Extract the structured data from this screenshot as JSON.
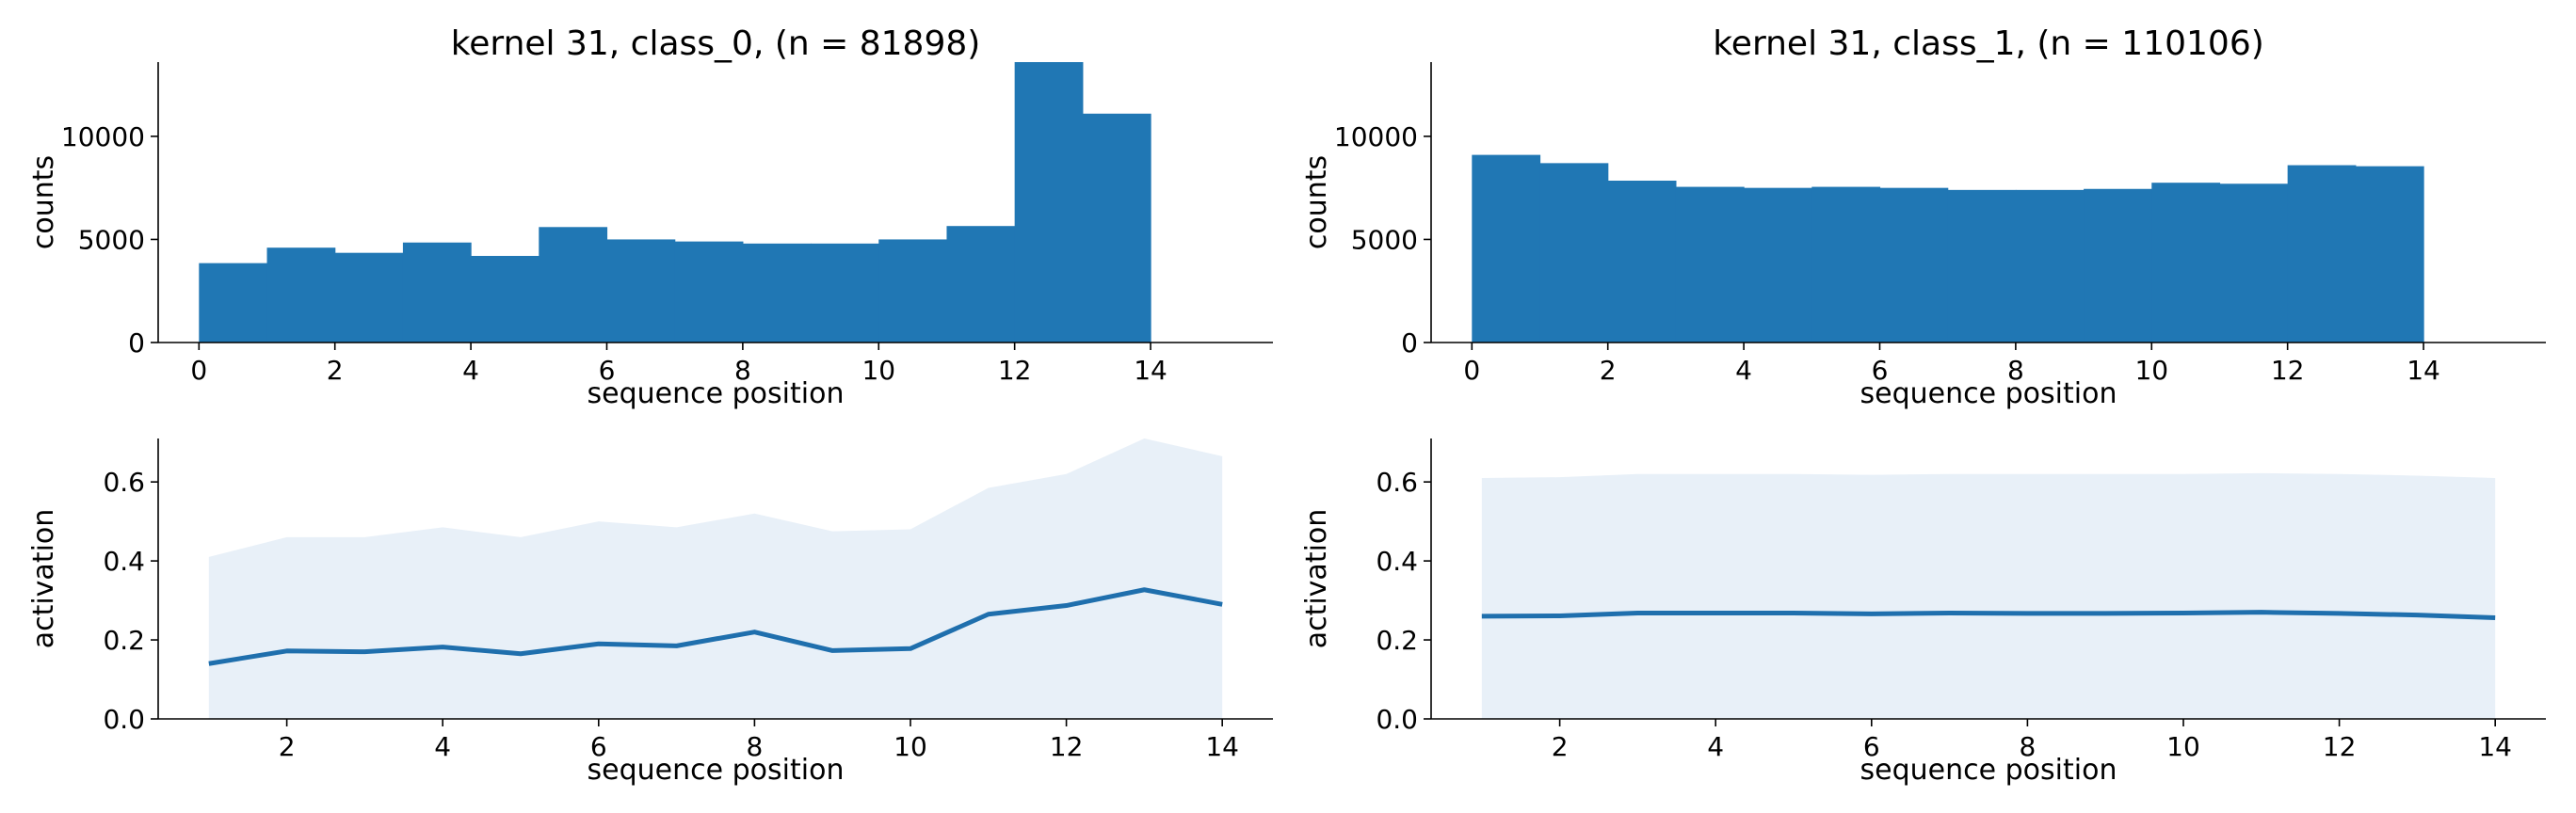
{
  "colors": {
    "bar": "#2077b4",
    "line": "#1f6fad",
    "band": "#e8f0f8",
    "axis": "#000000"
  },
  "chart_data": [
    {
      "type": "bar",
      "title": "kernel 31, class_0, (n = 81898)",
      "xlabel": "sequence position",
      "ylabel": "counts",
      "xlim": [
        -0.6,
        15.8
      ],
      "ylim": [
        0,
        13600
      ],
      "xticks": [
        0,
        2,
        4,
        6,
        8,
        10,
        12,
        14
      ],
      "xtick_labels": [
        "0",
        "2",
        "4",
        "6",
        "8",
        "10",
        "12",
        "14"
      ],
      "yticks": [
        0,
        5000,
        10000
      ],
      "ytick_labels": [
        "0",
        "5000",
        "10000"
      ],
      "bin_edges": [
        0,
        1,
        2,
        3,
        4,
        5,
        6,
        7,
        8,
        9,
        10,
        11,
        12,
        13,
        14
      ],
      "values": [
        3850,
        4600,
        4350,
        4850,
        4200,
        5600,
        5000,
        4900,
        4800,
        4800,
        5000,
        5650,
        13600,
        11100
      ]
    },
    {
      "type": "bar",
      "title": "kernel 31, class_1, (n = 110106)",
      "xlabel": "sequence position",
      "ylabel": "counts",
      "xlim": [
        -0.6,
        15.8
      ],
      "ylim": [
        0,
        13600
      ],
      "xticks": [
        0,
        2,
        4,
        6,
        8,
        10,
        12,
        14
      ],
      "xtick_labels": [
        "0",
        "2",
        "4",
        "6",
        "8",
        "10",
        "12",
        "14"
      ],
      "yticks": [
        0,
        5000,
        10000
      ],
      "ytick_labels": [
        "0",
        "5000",
        "10000"
      ],
      "bin_edges": [
        0,
        1,
        2,
        3,
        4,
        5,
        6,
        7,
        8,
        9,
        10,
        11,
        12,
        13,
        14
      ],
      "values": [
        9100,
        8700,
        7850,
        7550,
        7500,
        7550,
        7500,
        7400,
        7400,
        7450,
        7750,
        7700,
        8600,
        8550
      ]
    },
    {
      "type": "line",
      "title": "",
      "xlabel": "sequence position",
      "ylabel": "activation",
      "xlim": [
        0.35,
        14.65
      ],
      "ylim": [
        0,
        0.71
      ],
      "xticks": [
        2,
        4,
        6,
        8,
        10,
        12,
        14
      ],
      "xtick_labels": [
        "2",
        "4",
        "6",
        "8",
        "10",
        "12",
        "14"
      ],
      "yticks": [
        0.0,
        0.2,
        0.4,
        0.6
      ],
      "ytick_labels": [
        "0.0",
        "0.2",
        "0.4",
        "0.6"
      ],
      "x": [
        1,
        2,
        3,
        4,
        5,
        6,
        7,
        8,
        9,
        10,
        11,
        12,
        13,
        14
      ],
      "series": [
        {
          "values": [
            0.14,
            0.172,
            0.17,
            0.182,
            0.165,
            0.19,
            0.185,
            0.22,
            0.173,
            0.178,
            0.265,
            0.287,
            0.327,
            0.29
          ],
          "band_upper": [
            0.41,
            0.46,
            0.46,
            0.485,
            0.46,
            0.5,
            0.485,
            0.52,
            0.475,
            0.48,
            0.585,
            0.62,
            0.71,
            0.665
          ],
          "band_lower": [
            0,
            0,
            0,
            0,
            0,
            0,
            0,
            0,
            0,
            0,
            0,
            0,
            0,
            0
          ]
        }
      ]
    },
    {
      "type": "line",
      "title": "",
      "xlabel": "sequence position",
      "ylabel": "activation",
      "xlim": [
        0.35,
        14.65
      ],
      "ylim": [
        0,
        0.71
      ],
      "xticks": [
        2,
        4,
        6,
        8,
        10,
        12,
        14
      ],
      "xtick_labels": [
        "2",
        "4",
        "6",
        "8",
        "10",
        "12",
        "14"
      ],
      "yticks": [
        0.0,
        0.2,
        0.4,
        0.6
      ],
      "ytick_labels": [
        "0.0",
        "0.2",
        "0.4",
        "0.6"
      ],
      "x": [
        1,
        2,
        3,
        4,
        5,
        6,
        7,
        8,
        9,
        10,
        11,
        12,
        13,
        14
      ],
      "series": [
        {
          "values": [
            0.26,
            0.261,
            0.268,
            0.268,
            0.268,
            0.266,
            0.268,
            0.267,
            0.267,
            0.268,
            0.27,
            0.267,
            0.263,
            0.256
          ],
          "band_upper": [
            0.61,
            0.612,
            0.62,
            0.62,
            0.62,
            0.618,
            0.62,
            0.62,
            0.62,
            0.62,
            0.622,
            0.62,
            0.616,
            0.61
          ],
          "band_lower": [
            0,
            0,
            0,
            0,
            0,
            0,
            0,
            0,
            0,
            0,
            0,
            0,
            0,
            0
          ]
        }
      ]
    }
  ]
}
